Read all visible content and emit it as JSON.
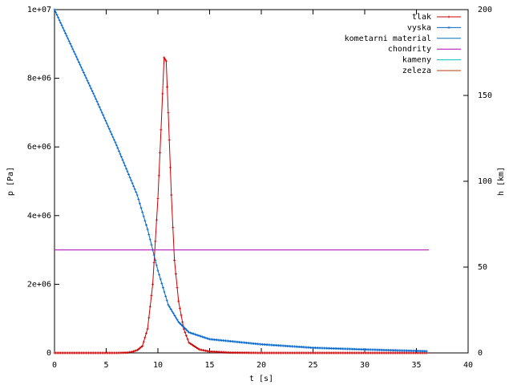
{
  "chart_data": {
    "type": "line",
    "title": "",
    "xlabel": "t [s]",
    "ylabel_left": "p [Pa]",
    "ylabel_right": "h [km]",
    "xlim": [
      0,
      40
    ],
    "ylim_left": [
      0,
      10000000
    ],
    "ylim_right": [
      0,
      200
    ],
    "x_ticks": [
      0,
      5,
      10,
      15,
      20,
      25,
      30,
      35,
      40
    ],
    "x_tick_labels": [
      "0",
      "5",
      "10",
      "15",
      "20",
      "25",
      "30",
      "35",
      "40"
    ],
    "y_left_ticks": [
      0,
      2000000,
      4000000,
      6000000,
      8000000,
      10000000
    ],
    "y_left_tick_labels": [
      "0",
      "2e+06",
      "4e+06",
      "6e+06",
      "8e+06",
      "1e+07"
    ],
    "y_right_ticks": [
      0,
      50,
      100,
      150,
      200
    ],
    "y_right_tick_labels": [
      "0",
      "50",
      "100",
      "150",
      "200"
    ],
    "grid": false,
    "legend_position": "top-right",
    "colors": {
      "tlak": "#cc0000",
      "vyska": "#0066cc",
      "kometarni_material": "#0070c0",
      "chondrity": "#b000b0",
      "kameny": "#00c0c0",
      "zeleza": "#b04000"
    },
    "series": [
      {
        "name": "tlak",
        "axis": "left",
        "x": [
          0,
          2,
          4,
          6,
          7,
          7.5,
          8,
          8.5,
          9,
          9.5,
          10,
          10.3,
          10.6,
          10.8,
          11,
          11.3,
          11.6,
          12,
          12.5,
          13,
          14,
          15,
          17,
          20,
          25,
          30,
          36
        ],
        "y": [
          0,
          0,
          0,
          0,
          10000,
          30000,
          80000,
          200000,
          700000,
          2000000,
          4500000,
          6500000,
          8600000,
          8500000,
          7000000,
          4600000,
          2700000,
          1500000,
          700000,
          300000,
          100000,
          40000,
          10000,
          0,
          0,
          0,
          0
        ]
      },
      {
        "name": "vyska",
        "axis": "right",
        "x": [
          0,
          2,
          4,
          6,
          8,
          9,
          10,
          10.5,
          11,
          12,
          13,
          15,
          20,
          25,
          30,
          36
        ],
        "y": [
          200,
          174,
          148,
          121,
          92,
          72,
          48,
          38,
          28,
          18,
          12,
          8,
          5,
          3,
          2,
          1
        ]
      },
      {
        "name": "kometarni material",
        "axis": "right",
        "x": [],
        "y": []
      },
      {
        "name": "chondrity",
        "axis": "left",
        "x": [
          0,
          36.2
        ],
        "y": [
          3000000,
          3000000
        ]
      },
      {
        "name": "kameny",
        "axis": "right",
        "x": [],
        "y": []
      },
      {
        "name": "zeleza",
        "axis": "right",
        "x": [],
        "y": []
      }
    ]
  }
}
